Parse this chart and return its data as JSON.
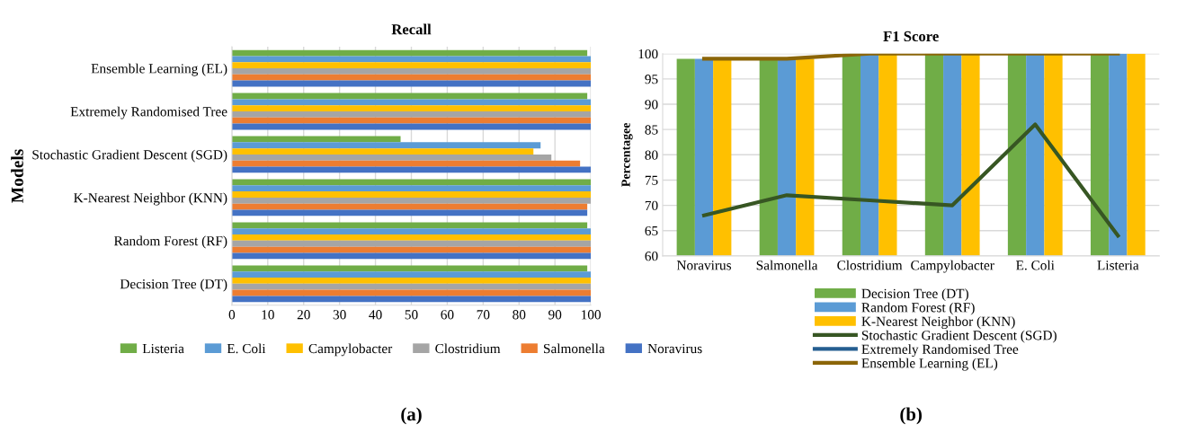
{
  "chart_data": [
    {
      "type": "bar",
      "orientation": "horizontal",
      "title": "Recall",
      "ylabel": "Models",
      "categories": [
        "Ensemble Learning (EL)",
        "Extremely Randomised Tree",
        "Stochastic Gradient Descent (SGD)",
        "K-Nearest Neighbor (KNN)",
        "Random Forest (RF)",
        "Decision Tree (DT)"
      ],
      "series": [
        {
          "name": "Listeria",
          "color": "#70ad47",
          "values": [
            99,
            99,
            47,
            100,
            99,
            99
          ]
        },
        {
          "name": "E. Coli",
          "color": "#5b9bd5",
          "values": [
            100,
            100,
            86,
            100,
            100,
            100
          ]
        },
        {
          "name": "Campylobacter",
          "color": "#ffc000",
          "values": [
            100,
            100,
            84,
            100,
            100,
            100
          ]
        },
        {
          "name": "Clostridium",
          "color": "#a5a5a5",
          "values": [
            100,
            100,
            89,
            100,
            100,
            100
          ]
        },
        {
          "name": "Salmonella",
          "color": "#ed7d31",
          "values": [
            100,
            100,
            97,
            99,
            100,
            100
          ]
        },
        {
          "name": "Noravirus",
          "color": "#4472c4",
          "values": [
            100,
            100,
            100,
            99,
            100,
            100
          ]
        }
      ],
      "xlim": [
        0,
        100
      ],
      "xticks": [
        0,
        10,
        20,
        30,
        40,
        50,
        60,
        70,
        80,
        90,
        100
      ],
      "grid": "x",
      "legend": "bottom",
      "annotations": [
        "(a)"
      ]
    },
    {
      "type": "bar",
      "title": "F1 Score",
      "ylabel": "Percentagee",
      "categories": [
        "Noravirus",
        "Salmonella",
        "Clostridium",
        "Campylobacter",
        "E. Coli",
        "Listeria"
      ],
      "series": [
        {
          "name": "Decision Tree (DT)",
          "color": "#70ad47",
          "values": [
            99,
            99,
            100,
            100,
            100,
            100
          ]
        },
        {
          "name": "Random Forest (RF)",
          "color": "#5b9bd5",
          "values": [
            99,
            99,
            100,
            100,
            100,
            100
          ]
        },
        {
          "name": "K-Nearest Neighbor (KNN)",
          "color": "#ffc000",
          "values": [
            99,
            99,
            100,
            100,
            100,
            100
          ]
        },
        {
          "name": "Stochastic Gradient Descent (SGD)",
          "type": "line",
          "color": "#375623",
          "values": [
            68,
            72,
            71,
            70,
            86,
            64
          ]
        },
        {
          "name": "Extremely Randomised Tree",
          "type": "line",
          "color": "#255e91",
          "values": [
            null,
            null,
            null,
            null,
            null,
            null
          ]
        },
        {
          "name": "Ensemble Learning (EL)",
          "type": "line",
          "color": "#8b6508",
          "values": [
            99,
            99,
            100,
            100,
            100,
            100
          ]
        }
      ],
      "ylim": [
        60,
        100
      ],
      "yticks": [
        60,
        65,
        70,
        75,
        80,
        85,
        90,
        95,
        100
      ],
      "grid": "y",
      "legend": "bottom",
      "annotations": [
        "(b)"
      ]
    }
  ]
}
